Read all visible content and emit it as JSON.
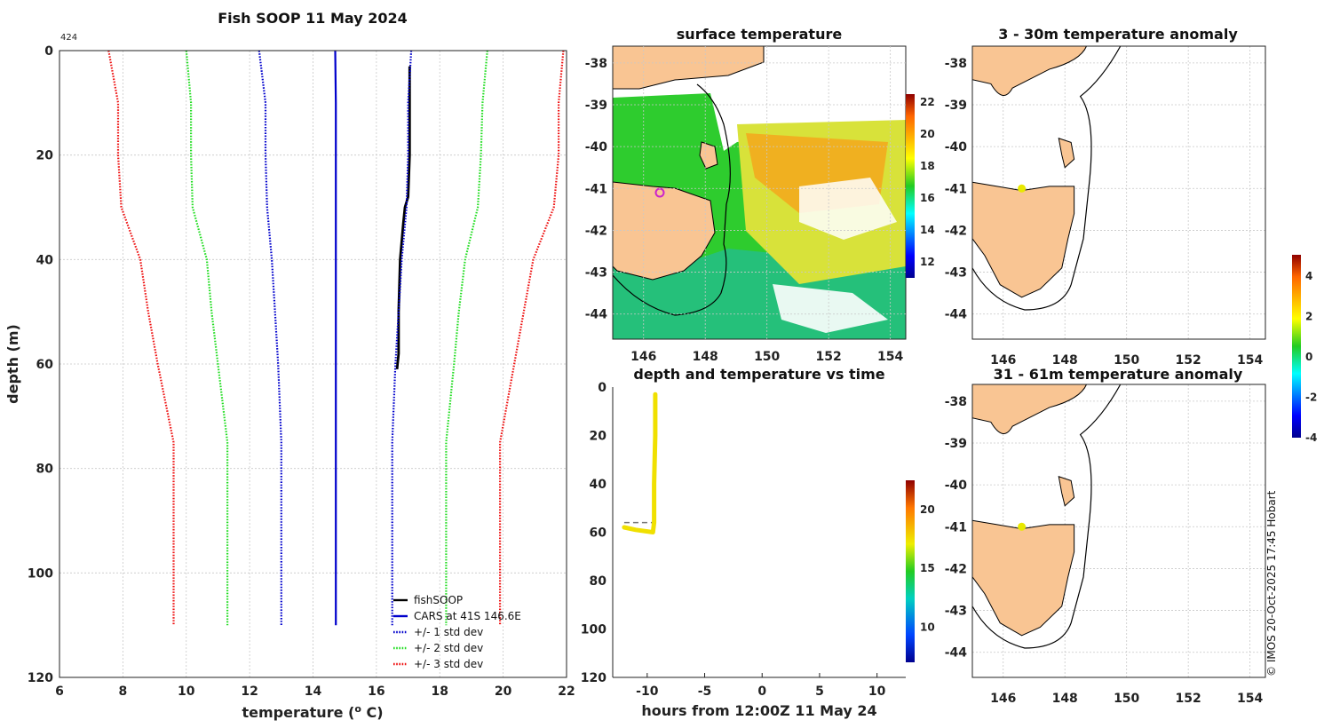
{
  "chart_data": [
    {
      "type": "line",
      "title": "Fish SOOP 11 May 2024",
      "annotation": "424",
      "xlabel": "temperature (",
      "xlabel_sup": "o",
      "xlabel_end": " C)",
      "ylabel": "depth (m)",
      "xlim": [
        6,
        22
      ],
      "ylim": [
        120,
        0
      ],
      "xticks": [
        6,
        8,
        10,
        12,
        14,
        16,
        18,
        20,
        22
      ],
      "yticks": [
        0,
        20,
        40,
        60,
        80,
        100,
        120
      ],
      "legend_position": "bottom-right",
      "series": [
        {
          "name": "fishSOOP",
          "style": "solid",
          "color": "#000000",
          "points": [
            [
              17.05,
              3
            ],
            [
              17.05,
              10
            ],
            [
              17.05,
              20
            ],
            [
              17.0,
              28
            ],
            [
              16.9,
              30
            ],
            [
              16.85,
              33
            ],
            [
              16.75,
              40
            ],
            [
              16.7,
              50
            ],
            [
              16.7,
              58
            ],
            [
              16.65,
              61
            ]
          ]
        },
        {
          "name": "CARS at 41S 146.6E",
          "style": "solid",
          "color": "#0000cc",
          "points": [
            [
              14.7,
              0
            ],
            [
              14.72,
              10
            ],
            [
              14.72,
              20
            ],
            [
              14.72,
              30
            ],
            [
              14.72,
              40
            ],
            [
              14.72,
              60
            ],
            [
              14.72,
              80
            ],
            [
              14.72,
              110
            ]
          ]
        },
        {
          "name": "+/- 1 std dev",
          "style": "dotted",
          "color": "#0000cc",
          "points": [
            [
              12.3,
              0
            ],
            [
              12.5,
              10
            ],
            [
              12.5,
              20
            ],
            [
              12.55,
              30
            ],
            [
              12.7,
              40
            ],
            [
              12.8,
              50
            ],
            [
              12.9,
              60
            ],
            [
              13.0,
              75
            ],
            [
              13.0,
              110
            ]
          ]
        },
        {
          "name": "+/- 1 std dev upper",
          "style": "dotted",
          "color": "#0000cc",
          "points": [
            [
              17.1,
              0
            ],
            [
              17.0,
              10
            ],
            [
              17.0,
              20
            ],
            [
              16.95,
              30
            ],
            [
              16.8,
              40
            ],
            [
              16.7,
              50
            ],
            [
              16.6,
              60
            ],
            [
              16.5,
              75
            ],
            [
              16.5,
              110
            ]
          ]
        },
        {
          "name": "+/- 2 std dev",
          "style": "dotted",
          "color": "#22dd22",
          "points": [
            [
              10.0,
              0
            ],
            [
              10.15,
              10
            ],
            [
              10.15,
              20
            ],
            [
              10.2,
              30
            ],
            [
              10.65,
              40
            ],
            [
              10.8,
              50
            ],
            [
              11.0,
              60
            ],
            [
              11.3,
              75
            ],
            [
              11.3,
              110
            ]
          ]
        },
        {
          "name": "+/- 2 std dev upper",
          "style": "dotted",
          "color": "#22dd22",
          "points": [
            [
              19.5,
              0
            ],
            [
              19.35,
              10
            ],
            [
              19.3,
              20
            ],
            [
              19.2,
              30
            ],
            [
              18.8,
              40
            ],
            [
              18.6,
              50
            ],
            [
              18.45,
              60
            ],
            [
              18.2,
              75
            ],
            [
              18.2,
              110
            ]
          ]
        },
        {
          "name": "+/- 3 std dev",
          "style": "dotted",
          "color": "#ee1111",
          "points": [
            [
              7.55,
              0
            ],
            [
              7.85,
              10
            ],
            [
              7.85,
              20
            ],
            [
              7.95,
              30
            ],
            [
              8.55,
              40
            ],
            [
              8.8,
              50
            ],
            [
              9.1,
              60
            ],
            [
              9.6,
              75
            ],
            [
              9.6,
              110
            ]
          ]
        },
        {
          "name": "+/- 3 std dev upper",
          "style": "dotted",
          "color": "#ee1111",
          "points": [
            [
              21.9,
              0
            ],
            [
              21.75,
              10
            ],
            [
              21.75,
              20
            ],
            [
              21.6,
              30
            ],
            [
              20.95,
              40
            ],
            [
              20.65,
              50
            ],
            [
              20.35,
              60
            ],
            [
              19.9,
              75
            ],
            [
              19.9,
              110
            ]
          ]
        }
      ],
      "legend_entries": [
        "fishSOOP",
        "CARS at 41S 146.6E",
        "+/- 1 std dev",
        "+/- 2 std dev",
        "+/- 3 std dev"
      ]
    },
    {
      "type": "heatmap",
      "title": "surface temperature",
      "xticks": [
        146,
        148,
        150,
        152,
        154
      ],
      "yticks": [
        -38,
        -39,
        -40,
        -41,
        -42,
        -43,
        -44
      ],
      "colorbar_ticks": [
        12,
        14,
        16,
        18,
        20,
        22
      ],
      "marker": {
        "lon": 146.6,
        "lat": -41.0,
        "color": "#cc22cc"
      }
    },
    {
      "type": "line",
      "title": "depth and temperature vs time",
      "xlabel": "hours from 12:00Z 11 May 24",
      "xlim": [
        -13,
        12.5
      ],
      "ylim": [
        120,
        0
      ],
      "xticks": [
        -10,
        -5,
        0,
        5,
        10
      ],
      "yticks": [
        0,
        20,
        40,
        60,
        80,
        100,
        120
      ],
      "reference_depth": 56,
      "colorbar_ticks": [
        10,
        15,
        20
      ],
      "series": [
        {
          "name": "track",
          "color": "#f0e000",
          "points": [
            [
              -12.0,
              58
            ],
            [
              -11.0,
              59
            ],
            [
              -9.5,
              60
            ],
            [
              -9.4,
              56
            ],
            [
              -9.4,
              40
            ],
            [
              -9.3,
              20
            ],
            [
              -9.3,
              3
            ]
          ]
        }
      ]
    },
    {
      "type": "heatmap",
      "title": "3 - 30m temperature anomaly",
      "xticks": [
        146,
        148,
        150,
        152,
        154
      ],
      "yticks": [
        -38,
        -39,
        -40,
        -41,
        -42,
        -43,
        -44
      ],
      "marker": {
        "lon": 146.6,
        "lat": -41.0,
        "color": "#e8e800"
      }
    },
    {
      "type": "heatmap",
      "title": "31 - 61m temperature anomaly",
      "xticks": [
        146,
        148,
        150,
        152,
        154
      ],
      "yticks": [
        -38,
        -39,
        -40,
        -41,
        -42,
        -43,
        -44
      ],
      "marker": {
        "lon": 146.6,
        "lat": -41.0,
        "color": "#e8e800"
      }
    }
  ],
  "anomaly_colorbar_ticks": [
    4,
    2,
    0,
    -2,
    -4
  ],
  "credit": "© IMOS 20-Oct-2025 17:45 Hobart",
  "colors": {
    "land": "#f9c593",
    "grid": "#c8c8c8",
    "coast": "#000000"
  }
}
